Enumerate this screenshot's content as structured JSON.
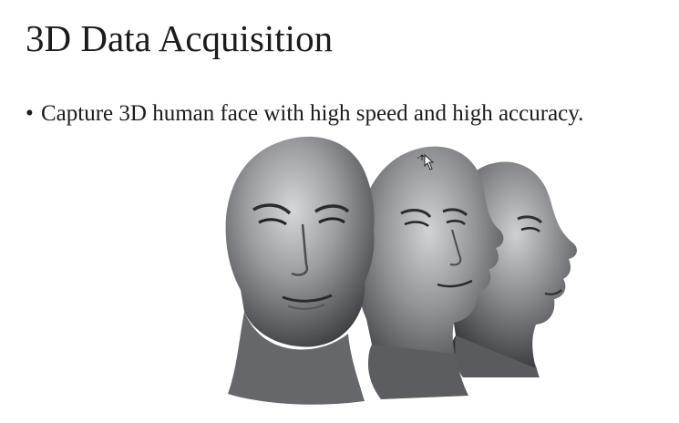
{
  "slide": {
    "title": "3D Data Acquisition",
    "bullets": [
      {
        "marker": "•",
        "text": "Capture 3D human face with high speed and high accuracy."
      }
    ]
  },
  "figure": {
    "subject": "three-3d-face-scans",
    "colors": {
      "skin_light": "#c9cacc",
      "skin_mid": "#8d8f93",
      "skin_dark": "#3c3d40",
      "background": "#ffffff"
    }
  },
  "pointer": {
    "icon": "move-cursor-icon"
  }
}
